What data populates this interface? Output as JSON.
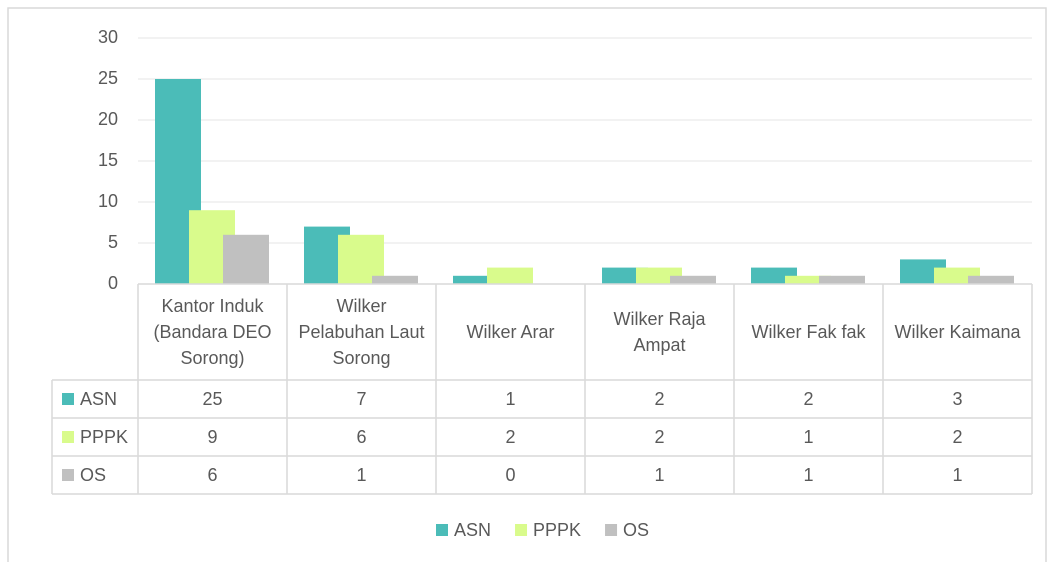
{
  "chart_data": {
    "type": "bar",
    "categories": [
      "Kantor Induk (Bandara DEO Sorong)",
      "Wilker Pelabuhan Laut Sorong",
      "Wilker Arar",
      "Wilker Raja Ampat",
      "Wilker Fak fak",
      "Wilker Kaimana"
    ],
    "series": [
      {
        "name": "ASN",
        "color": "#4bbcb8",
        "values": [
          25,
          7,
          1,
          2,
          2,
          3
        ]
      },
      {
        "name": "PPPK",
        "color": "#d9fb8c",
        "values": [
          9,
          6,
          2,
          2,
          1,
          2
        ]
      },
      {
        "name": "OS",
        "color": "#c0c0c0",
        "values": [
          6,
          1,
          0,
          1,
          1,
          1
        ]
      }
    ],
    "ylim": [
      0,
      30
    ],
    "yticks": [
      0,
      5,
      10,
      15,
      20,
      25,
      30
    ],
    "grid": true,
    "legend": "bottom"
  }
}
